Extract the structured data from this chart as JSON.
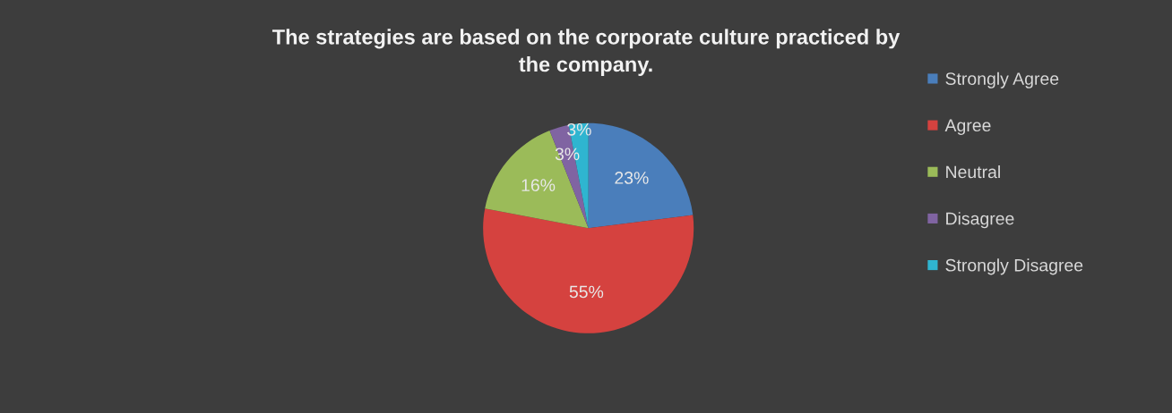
{
  "chart_data": {
    "type": "pie",
    "title": "The strategies are based on the corporate culture practiced by the company.",
    "categories": [
      "Strongly Agree",
      "Agree",
      "Neutral",
      "Disagree",
      "Strongly Disagree"
    ],
    "values": [
      23,
      55,
      16,
      3,
      3
    ],
    "value_labels": [
      "23%",
      "55%",
      "16%",
      "3%",
      "3%"
    ],
    "colors": [
      "#4a7ebb",
      "#d5423f",
      "#9bbb59",
      "#8064a2",
      "#2fb5d0"
    ],
    "legend": "right"
  }
}
